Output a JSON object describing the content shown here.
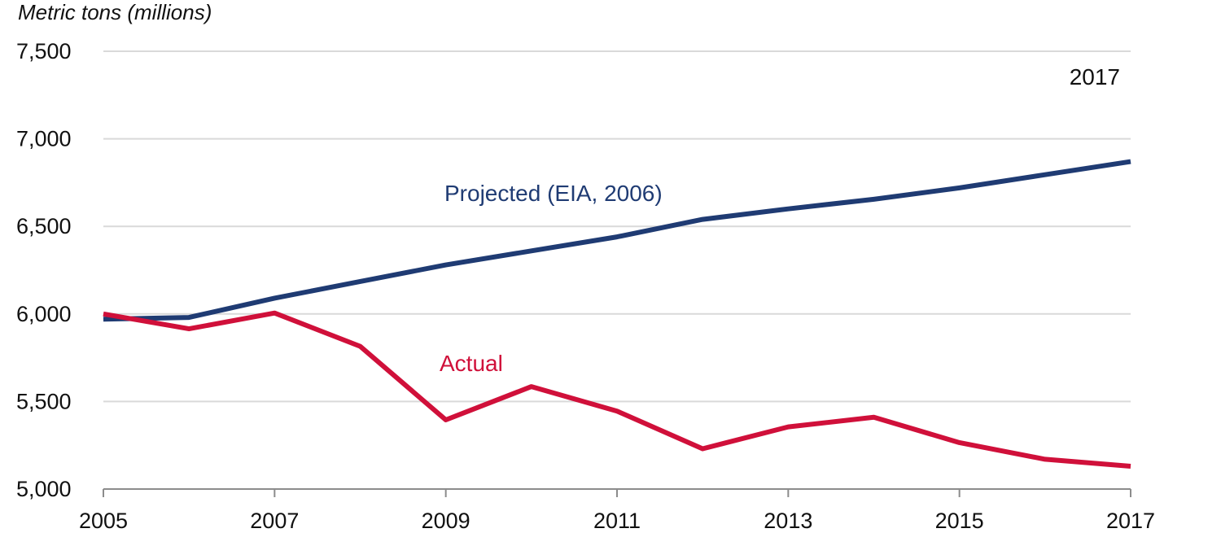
{
  "chart_data": {
    "type": "line",
    "ylabel": "Metric tons (millions)",
    "annotation": "2017",
    "x": [
      2005,
      2006,
      2007,
      2008,
      2009,
      2010,
      2011,
      2012,
      2013,
      2014,
      2015,
      2016,
      2017
    ],
    "x_tick_labels": [
      "2005",
      "2007",
      "2009",
      "2011",
      "2013",
      "2015",
      "2017"
    ],
    "x_tick_values": [
      2005,
      2007,
      2009,
      2011,
      2013,
      2015,
      2017
    ],
    "y_tick_labels": [
      "5,000",
      "5,500",
      "6,000",
      "6,500",
      "7,000",
      "7,500"
    ],
    "y_tick_values": [
      5000,
      5500,
      6000,
      6500,
      7000,
      7500
    ],
    "xlim": [
      2005,
      2017
    ],
    "ylim": [
      5000,
      7500
    ],
    "grid": true,
    "legend": "none",
    "series": [
      {
        "name": "Projected (EIA, 2006)",
        "color": "#1f3b73",
        "values": [
          5970,
          5980,
          6090,
          6185,
          6280,
          6360,
          6440,
          6540,
          6600,
          6655,
          6720,
          6795,
          6870
        ]
      },
      {
        "name": "Actual",
        "color": "#d0103a",
        "values": [
          6000,
          5915,
          6005,
          5815,
          5395,
          5585,
          5445,
          5230,
          5355,
          5410,
          5265,
          5170,
          5130
        ]
      }
    ]
  }
}
